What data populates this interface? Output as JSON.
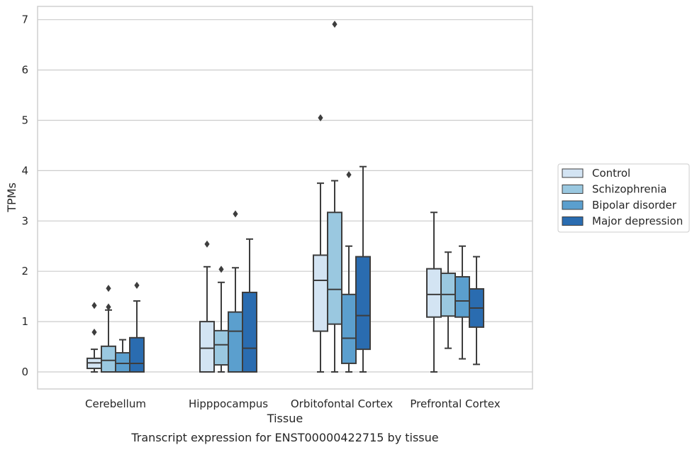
{
  "caption": "Transcript expression for ENST00000422715 by tissue",
  "chart_data": {
    "type": "box",
    "title": "",
    "xlabel": "Tissue",
    "ylabel": "TPMs",
    "ylim": [
      -0.33,
      7.27
    ],
    "yticks": [
      0,
      1,
      2,
      3,
      4,
      5,
      6,
      7
    ],
    "grid": "horizontal",
    "legend_position": "right",
    "categories": [
      "Cerebellum",
      "Hipppocampus",
      "Orbitofontal Cortex",
      "Prefrontal Cortex"
    ],
    "series": [
      {
        "name": "Control",
        "color": "#d3e4f3",
        "boxes": [
          {
            "whislo": 0.0,
            "q1": 0.07,
            "med": 0.18,
            "q3": 0.27,
            "whishi": 0.45,
            "fliers": [
              0.79,
              1.32
            ]
          },
          {
            "whislo": 0.0,
            "q1": 0.0,
            "med": 0.47,
            "q3": 1.0,
            "whishi": 2.09,
            "fliers": [
              2.54
            ]
          },
          {
            "whislo": 0.0,
            "q1": 0.81,
            "med": 1.82,
            "q3": 2.32,
            "whishi": 3.75,
            "fliers": [
              5.05
            ]
          },
          {
            "whislo": 0.0,
            "q1": 1.09,
            "med": 1.54,
            "q3": 2.05,
            "whishi": 3.17,
            "fliers": []
          }
        ]
      },
      {
        "name": "Schizophrenia",
        "color": "#9ac8e0",
        "boxes": [
          {
            "whislo": 0.0,
            "q1": 0.0,
            "med": 0.23,
            "q3": 0.51,
            "whishi": 1.23,
            "fliers": [
              1.29,
              1.66
            ]
          },
          {
            "whislo": 0.0,
            "q1": 0.14,
            "med": 0.54,
            "q3": 0.82,
            "whishi": 1.78,
            "fliers": [
              2.04
            ]
          },
          {
            "whislo": 0.0,
            "q1": 0.95,
            "med": 1.64,
            "q3": 3.17,
            "whishi": 3.8,
            "fliers": [
              6.91
            ]
          },
          {
            "whislo": 0.47,
            "q1": 1.11,
            "med": 1.54,
            "q3": 1.96,
            "whishi": 2.38,
            "fliers": []
          }
        ]
      },
      {
        "name": "Bipolar disorder",
        "color": "#5b9fce",
        "boxes": [
          {
            "whislo": 0.0,
            "q1": 0.0,
            "med": 0.17,
            "q3": 0.38,
            "whishi": 0.64,
            "fliers": []
          },
          {
            "whislo": 0.0,
            "q1": 0.0,
            "med": 0.81,
            "q3": 1.19,
            "whishi": 2.07,
            "fliers": [
              3.14
            ]
          },
          {
            "whislo": 0.0,
            "q1": 0.17,
            "med": 0.67,
            "q3": 1.54,
            "whishi": 2.5,
            "fliers": [
              3.92
            ]
          },
          {
            "whislo": 0.26,
            "q1": 1.09,
            "med": 1.41,
            "q3": 1.89,
            "whishi": 2.5,
            "fliers": []
          }
        ]
      },
      {
        "name": "Major depression",
        "color": "#2a6cb0",
        "boxes": [
          {
            "whislo": 0.0,
            "q1": 0.0,
            "med": 0.17,
            "q3": 0.68,
            "whishi": 1.41,
            "fliers": [
              1.72
            ]
          },
          {
            "whislo": 0.0,
            "q1": 0.0,
            "med": 0.47,
            "q3": 1.58,
            "whishi": 2.64,
            "fliers": []
          },
          {
            "whislo": 0.0,
            "q1": 0.45,
            "med": 1.12,
            "q3": 2.29,
            "whishi": 4.08,
            "fliers": []
          },
          {
            "whislo": 0.15,
            "q1": 0.89,
            "med": 1.27,
            "q3": 1.65,
            "whishi": 2.29,
            "fliers": []
          }
        ]
      }
    ]
  }
}
